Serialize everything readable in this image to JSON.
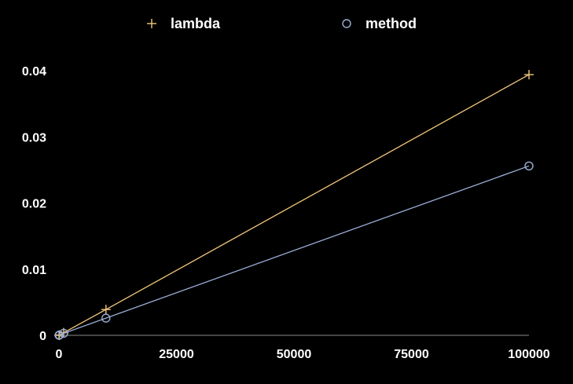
{
  "chart_data": {
    "type": "line",
    "title": "",
    "xlabel": "",
    "ylabel": "",
    "xlim": [
      0,
      100000
    ],
    "ylim": [
      0,
      0.04
    ],
    "x_ticks": [
      "0",
      "25000",
      "50000",
      "75000",
      "100000"
    ],
    "y_ticks": [
      "0",
      "0.01",
      "0.02",
      "0.03",
      "0.04"
    ],
    "grid": false,
    "legend_position": "top",
    "series": [
      {
        "name": "lambda",
        "marker": "plus",
        "color": "#f2c77a",
        "points": [
          {
            "x": 10,
            "y": 0.0
          },
          {
            "x": 100,
            "y": 4e-05
          },
          {
            "x": 1000,
            "y": 0.0004
          },
          {
            "x": 10000,
            "y": 0.0039
          },
          {
            "x": 100000,
            "y": 0.0394
          }
        ]
      },
      {
        "name": "method",
        "marker": "circle",
        "color": "#9aaed6",
        "points": [
          {
            "x": 10,
            "y": 0.0
          },
          {
            "x": 100,
            "y": 3e-05
          },
          {
            "x": 1000,
            "y": 0.0003
          },
          {
            "x": 10000,
            "y": 0.0026
          },
          {
            "x": 100000,
            "y": 0.0256
          }
        ]
      }
    ]
  }
}
